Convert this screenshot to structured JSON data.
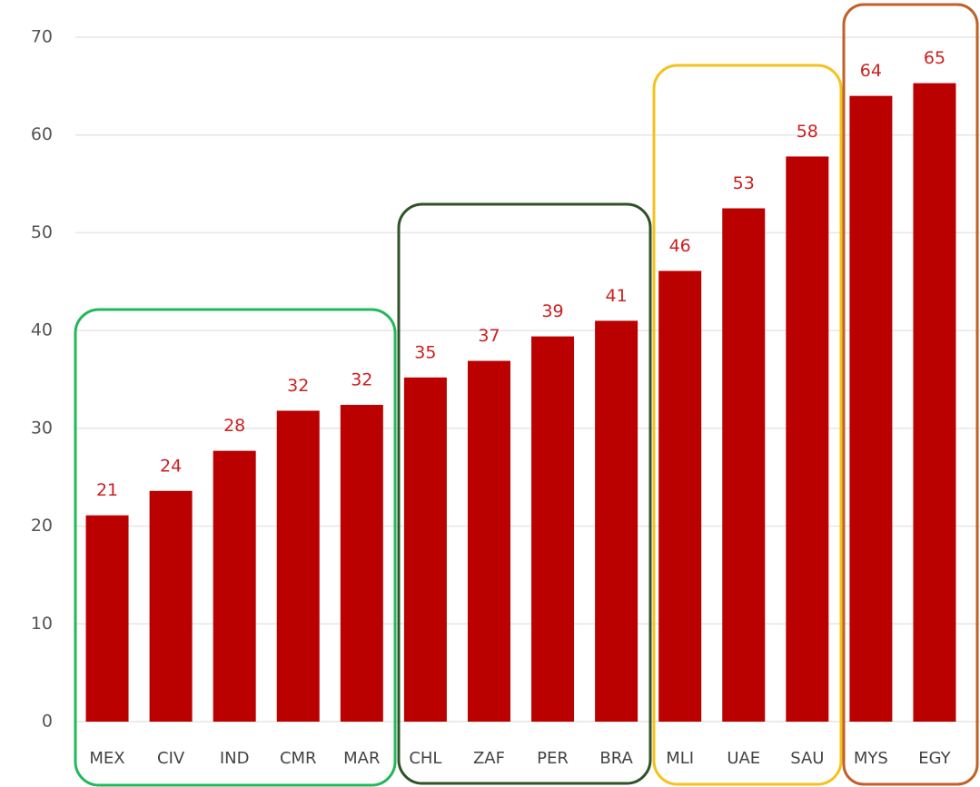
{
  "chart_data": {
    "type": "bar",
    "categories": [
      "MEX",
      "CIV",
      "IND",
      "CMR",
      "MAR",
      "CHL",
      "ZAF",
      "PER",
      "BRA",
      "MLI",
      "UAE",
      "SAU",
      "MYS",
      "EGY"
    ],
    "values": [
      21.1,
      23.6,
      27.7,
      31.8,
      32.4,
      35.2,
      36.9,
      39.4,
      41.0,
      46.1,
      52.5,
      57.8,
      64.0,
      65.3
    ],
    "value_labels": [
      "21",
      "24",
      "28",
      "32",
      "32",
      "35",
      "37",
      "39",
      "41",
      "46",
      "53",
      "58",
      "64",
      "65"
    ],
    "color": "#bb0000",
    "ylim": [
      0,
      70
    ],
    "yticks": [
      0,
      10,
      20,
      30,
      40,
      50,
      60,
      70
    ],
    "grid": true
  }
}
